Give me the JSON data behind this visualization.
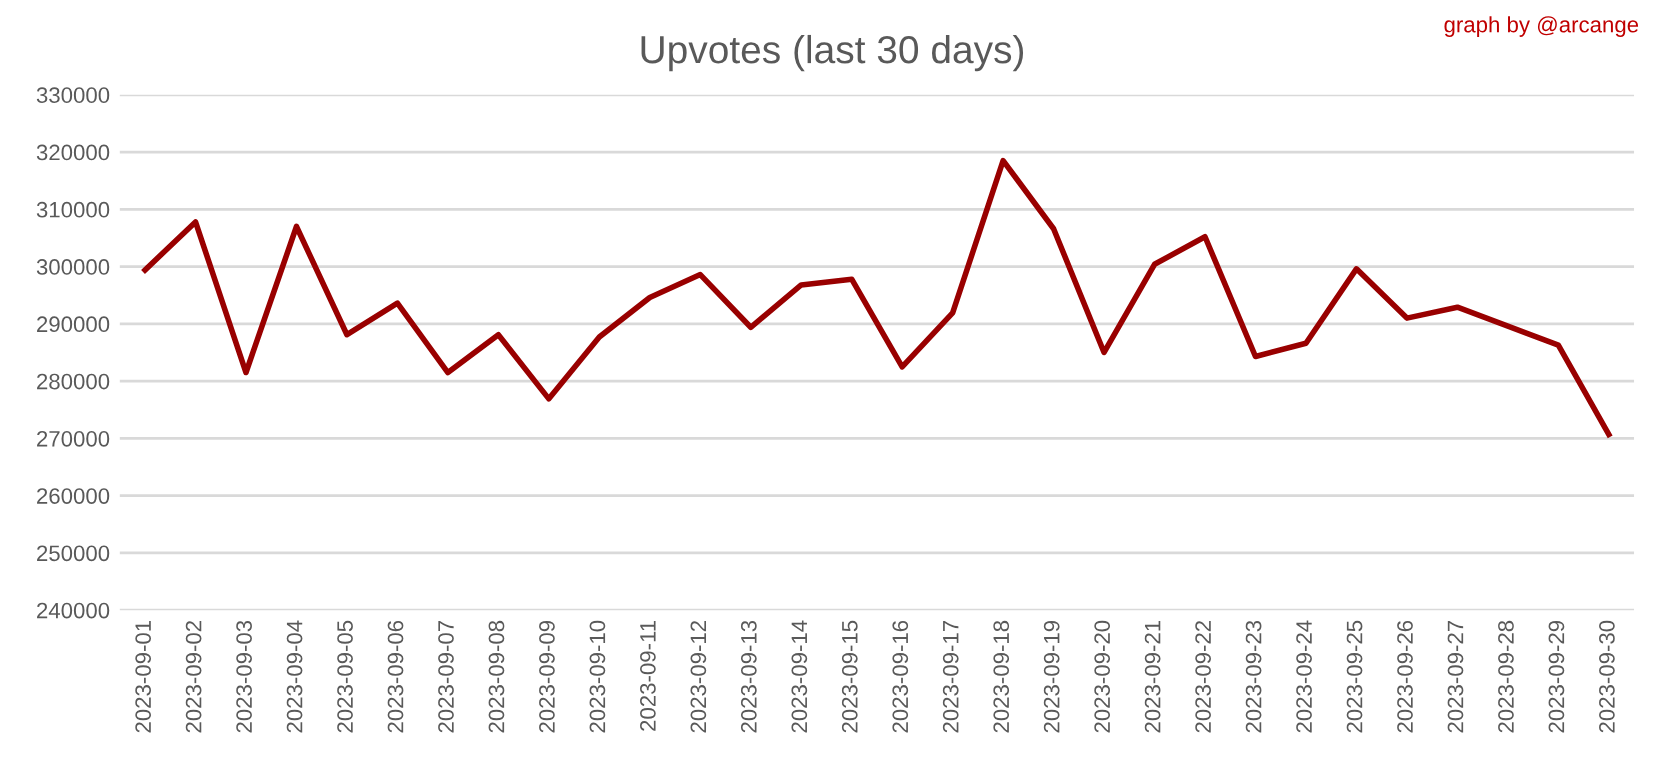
{
  "chart_data": {
    "type": "line",
    "title": "Upvotes (last 30 days)",
    "annotations": [
      "graph by @arcange"
    ],
    "categories": [
      "2023-09-01",
      "2023-09-02",
      "2023-09-03",
      "2023-09-04",
      "2023-09-05",
      "2023-09-06",
      "2023-09-07",
      "2023-09-08",
      "2023-09-09",
      "2023-09-10",
      "2023-09-11",
      "2023-09-12",
      "2023-09-13",
      "2023-09-14",
      "2023-09-15",
      "2023-09-16",
      "2023-09-17",
      "2023-09-18",
      "2023-09-19",
      "2023-09-20",
      "2023-09-21",
      "2023-09-22",
      "2023-09-23",
      "2023-09-24",
      "2023-09-25",
      "2023-09-26",
      "2023-09-27",
      "2023-09-28",
      "2023-09-29",
      "2023-09-30"
    ],
    "series": [
      {
        "color": "#990000",
        "values": [
          299400,
          307800,
          281500,
          307000,
          288100,
          293600,
          281500,
          288100,
          276900,
          287700,
          294600,
          298600,
          289400,
          296800,
          297800,
          282500,
          291900,
          318500,
          306600,
          285000,
          300400,
          305200,
          284300,
          286600,
          299600,
          291000,
          292900,
          289600,
          286300,
          270700
        ]
      }
    ],
    "ylim": [
      240000,
      330000
    ],
    "yticks": [
      240000,
      250000,
      260000,
      270000,
      280000,
      290000,
      300000,
      310000,
      320000,
      330000
    ],
    "grid": "y",
    "legend": false,
    "marker": "none",
    "line_style": "solid"
  }
}
